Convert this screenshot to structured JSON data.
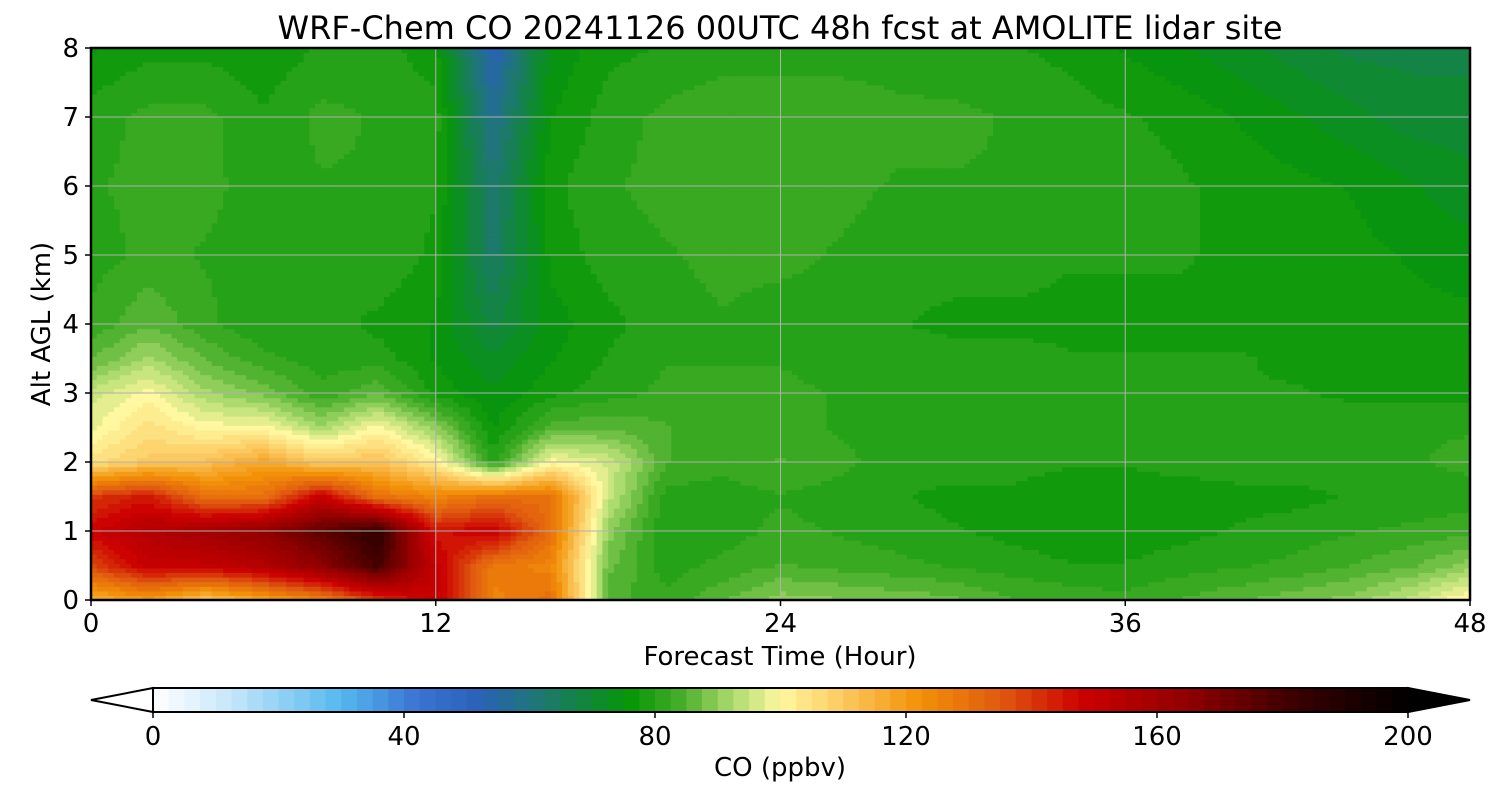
{
  "chart_data": {
    "type": "heatmap",
    "title": "WRF-Chem CO  20241126 00UTC 48h fcst at AMOLITE lidar site",
    "xlabel": "Forecast Time (Hour)",
    "ylabel": "Alt AGL (km)",
    "xlim": [
      0,
      48
    ],
    "ylim": [
      0,
      8
    ],
    "x_ticks": [
      0,
      12,
      24,
      36,
      48
    ],
    "x_tick_labels": [
      "0",
      "12",
      "24",
      "36",
      "48"
    ],
    "y_ticks": [
      0,
      1,
      2,
      3,
      4,
      5,
      6,
      7,
      8
    ],
    "y_tick_labels": [
      "0",
      "1",
      "2",
      "3",
      "4",
      "5",
      "6",
      "7",
      "8"
    ],
    "grid": true,
    "colorbar": {
      "label": "CO  (ppbv)",
      "range": [
        0,
        200
      ],
      "ticks": [
        0,
        40,
        80,
        120,
        160,
        200
      ],
      "tick_labels": [
        "0",
        "40",
        "80",
        "120",
        "160",
        "200"
      ],
      "extend": "both",
      "stops": [
        {
          "v": 0,
          "color": "#ffffff"
        },
        {
          "v": 10,
          "color": "#d4ecfb"
        },
        {
          "v": 20,
          "color": "#93d3f5"
        },
        {
          "v": 30,
          "color": "#55b8ee"
        },
        {
          "v": 42,
          "color": "#3a74d2"
        },
        {
          "v": 52,
          "color": "#2a62b8"
        },
        {
          "v": 62,
          "color": "#1d7870"
        },
        {
          "v": 76,
          "color": "#069606"
        },
        {
          "v": 84,
          "color": "#45ad29"
        },
        {
          "v": 92,
          "color": "#a8d96b"
        },
        {
          "v": 100,
          "color": "#fff8a0"
        },
        {
          "v": 110,
          "color": "#fbc95f"
        },
        {
          "v": 122,
          "color": "#f39208"
        },
        {
          "v": 135,
          "color": "#e05a10"
        },
        {
          "v": 148,
          "color": "#cc0000"
        },
        {
          "v": 165,
          "color": "#900000"
        },
        {
          "v": 182,
          "color": "#3a0000"
        },
        {
          "v": 200,
          "color": "#000000"
        }
      ]
    },
    "x_hours": [
      0,
      2,
      4,
      6,
      8,
      10,
      12,
      14,
      16,
      18,
      20,
      22,
      24,
      26,
      28,
      30,
      32,
      34,
      36,
      38,
      40,
      42,
      44,
      46,
      48
    ],
    "z_km": [
      0,
      0.5,
      1,
      1.5,
      2,
      2.5,
      3,
      3.5,
      4,
      5,
      6,
      7,
      8
    ],
    "co_ppbv": [
      [
        115,
        120,
        110,
        118,
        125,
        140,
        150,
        125,
        130,
        85,
        82,
        86,
        90,
        89,
        88,
        87,
        84,
        83,
        82,
        84,
        86,
        88,
        90,
        95,
        102
      ],
      [
        138,
        150,
        150,
        155,
        165,
        180,
        150,
        128,
        125,
        87,
        80,
        82,
        84,
        83,
        82,
        81,
        80,
        79,
        79,
        80,
        81,
        82,
        84,
        86,
        90
      ],
      [
        148,
        155,
        160,
        165,
        175,
        185,
        145,
        150,
        130,
        90,
        79,
        80,
        82,
        81,
        80,
        79,
        78,
        77,
        77,
        78,
        79,
        80,
        81,
        82,
        83
      ],
      [
        140,
        145,
        130,
        130,
        150,
        130,
        125,
        130,
        130,
        95,
        80,
        80,
        81,
        80,
        79,
        78,
        78,
        77,
        77,
        77,
        78,
        78,
        79,
        79,
        80
      ],
      [
        105,
        110,
        112,
        118,
        110,
        112,
        102,
        80,
        100,
        96,
        84,
        82,
        84,
        82,
        80,
        80,
        80,
        79,
        79,
        80,
        80,
        80,
        81,
        81,
        82
      ],
      [
        98,
        105,
        100,
        100,
        92,
        100,
        90,
        76,
        85,
        86,
        84,
        82,
        82,
        81,
        80,
        80,
        80,
        80,
        80,
        80,
        80,
        81,
        81,
        81,
        81
      ],
      [
        95,
        100,
        92,
        88,
        82,
        86,
        78,
        74,
        78,
        80,
        82,
        82,
        82,
        81,
        80,
        80,
        80,
        80,
        79,
        79,
        79,
        79,
        78,
        78,
        78
      ],
      [
        86,
        92,
        86,
        82,
        80,
        80,
        76,
        72,
        76,
        79,
        81,
        81,
        81,
        80,
        80,
        80,
        80,
        79,
        79,
        79,
        79,
        78,
        78,
        78,
        78
      ],
      [
        82,
        86,
        82,
        79,
        80,
        78,
        76,
        68,
        75,
        78,
        80,
        81,
        80,
        80,
        79,
        78,
        78,
        78,
        78,
        78,
        78,
        78,
        77,
        77,
        77
      ],
      [
        80,
        82,
        81,
        80,
        80,
        81,
        78,
        63,
        77,
        80,
        81,
        82,
        82,
        81,
        80,
        80,
        80,
        79,
        79,
        79,
        78,
        78,
        77,
        76,
        75
      ],
      [
        81,
        82,
        82,
        80,
        81,
        81,
        79,
        62,
        78,
        81,
        82,
        82,
        82,
        82,
        81,
        81,
        81,
        80,
        80,
        79,
        78,
        77,
        76,
        74,
        72
      ],
      [
        80,
        82,
        82,
        79,
        82,
        81,
        80,
        58,
        76,
        80,
        82,
        83,
        83,
        83,
        82,
        82,
        81,
        80,
        79,
        78,
        76,
        74,
        72,
        70,
        70
      ],
      [
        76,
        78,
        78,
        77,
        79,
        80,
        77,
        52,
        74,
        78,
        79,
        80,
        80,
        80,
        80,
        79,
        79,
        78,
        76,
        74,
        72,
        70,
        68,
        68,
        68
      ]
    ]
  }
}
